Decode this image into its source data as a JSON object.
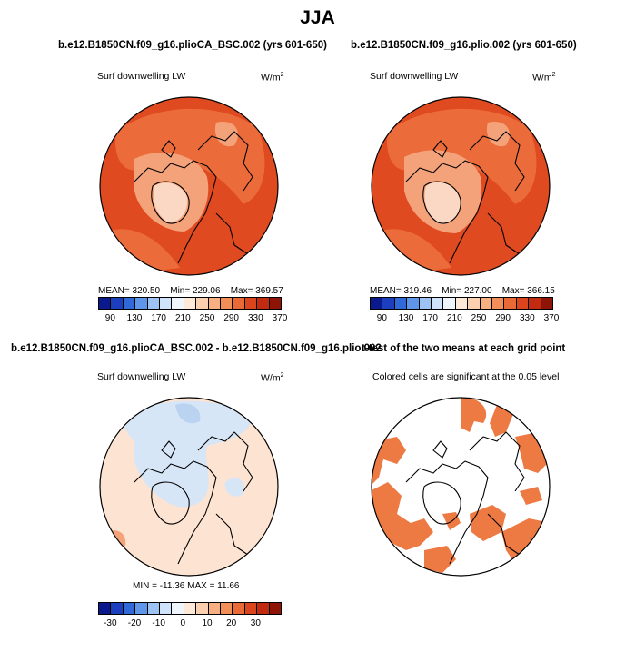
{
  "main_title": "JJA",
  "panels": {
    "case1": {
      "title": "b.e12.B1850CN.f09_g16.plioCA_BSC.002 (yrs 601-650)",
      "variable": "Surf downwelling LW",
      "units_base": "W/m",
      "units_exp": "2",
      "stats": {
        "mean": "MEAN= 320.50",
        "min": "Min= 229.06",
        "max": "Max= 369.57"
      }
    },
    "case2": {
      "title": "b.e12.B1850CN.f09_g16.plio.002 (yrs 601-650)",
      "variable": "Surf downwelling LW",
      "units_base": "W/m",
      "units_exp": "2",
      "stats": {
        "mean": "MEAN= 319.46",
        "min": "Min= 227.00",
        "max": "Max= 366.15"
      }
    },
    "difference": {
      "title": "b.e12.B1850CN.f09_g16.plioCA_BSC.002 - b.e12.B1850CN.f09_g16.plio.002",
      "variable": "Surf downwelling LW",
      "units_base": "W/m",
      "units_exp": "2",
      "stats": "MIN = -11.36  MAX =  11.66"
    },
    "ttest": {
      "title": "t-test of the two means at each grid point",
      "subtitle": "Colored cells are significant at the 0.05 level"
    }
  },
  "colorbars": {
    "absolute": {
      "labels": [
        "90",
        "130",
        "170",
        "210",
        "250",
        "290",
        "330",
        "370"
      ],
      "colors": [
        "#0a1a8c",
        "#1b3fbf",
        "#2f6ad8",
        "#5e97ea",
        "#9cc3f2",
        "#cfe3fa",
        "#eef5fd",
        "#fde9d8",
        "#fbd0b0",
        "#f7b081",
        "#f28e58",
        "#ea6a35",
        "#db451d",
        "#c22a12",
        "#8f1408"
      ]
    },
    "difference": {
      "labels": [
        "-30",
        "-20",
        "-10",
        "0",
        "10",
        "20",
        "30"
      ],
      "colors": [
        "#0a1a8c",
        "#1b3fbf",
        "#2f6ad8",
        "#5e97ea",
        "#9cc3f2",
        "#cfe3fa",
        "#eef5fd",
        "#fde9d8",
        "#fbd0b0",
        "#f7b081",
        "#f28e58",
        "#ea6a35",
        "#db451d",
        "#c22a12",
        "#8f1408"
      ]
    }
  },
  "map_colors": {
    "high": "#e04a20",
    "mid": "#eb6c3a",
    "low": "#f4a27a",
    "ice": "#fbd8c4",
    "diff_pos": "#fde3d1",
    "diff_neg": "#d7e6f7",
    "diff_neg2": "#b9d3f0",
    "signif": "#ee7a43"
  }
}
